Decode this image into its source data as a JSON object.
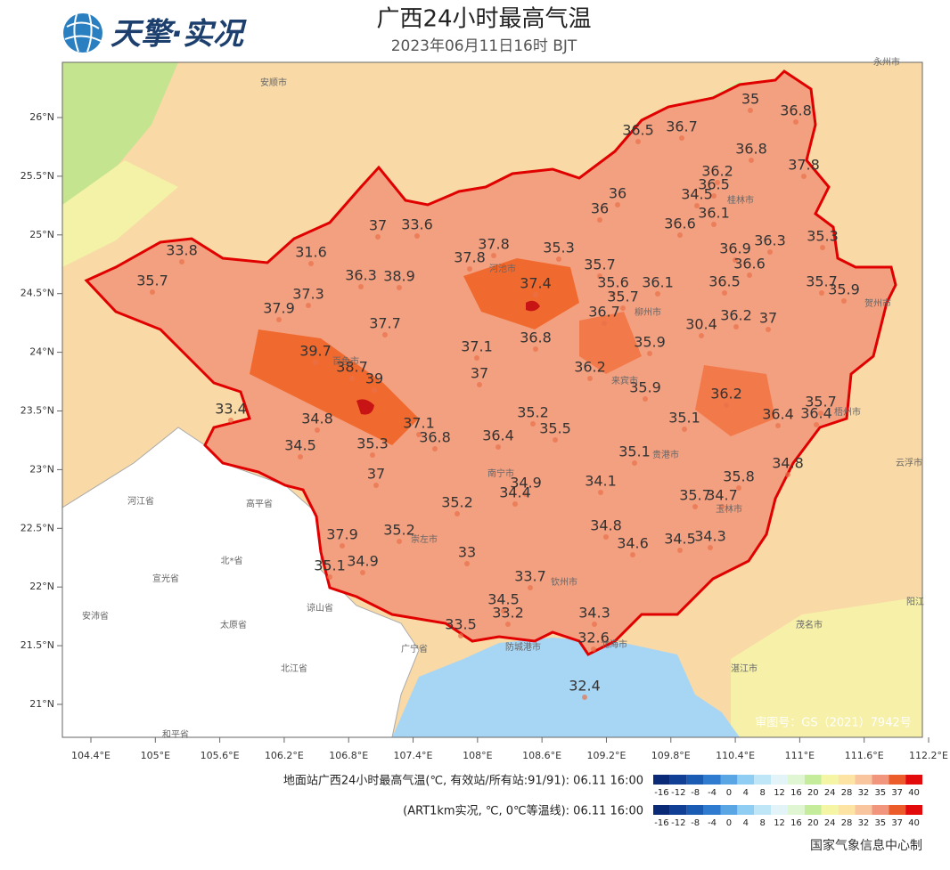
{
  "header": {
    "logo": "天擎·实况",
    "title": "广西24小时最高气温",
    "subtitle": "2023年06月11日16时 BJT"
  },
  "map": {
    "lon_ticks": [
      {
        "value": 104.4,
        "label": "104.4°E"
      },
      {
        "value": 105,
        "label": "105°E"
      },
      {
        "value": 105.6,
        "label": "105.6°E"
      },
      {
        "value": 106.2,
        "label": "106.2°E"
      },
      {
        "value": 106.8,
        "label": "106.8°E"
      },
      {
        "value": 107.4,
        "label": "107.4°E"
      },
      {
        "value": 108,
        "label": "108°E"
      },
      {
        "value": 108.6,
        "label": "108.6°E"
      },
      {
        "value": 109.2,
        "label": "109.2°E"
      },
      {
        "value": 109.8,
        "label": "109.8°E"
      },
      {
        "value": 110.4,
        "label": "110.4°E"
      },
      {
        "value": 111,
        "label": "111°E"
      },
      {
        "value": 111.6,
        "label": "111.6°E"
      },
      {
        "value": 112.2,
        "label": "112.2°E"
      }
    ],
    "lat_ticks": [
      {
        "value": 26,
        "label": "26°N"
      },
      {
        "value": 25.5,
        "label": "25.5°N"
      },
      {
        "value": 25,
        "label": "25°N"
      },
      {
        "value": 24.5,
        "label": "24.5°N"
      },
      {
        "value": 24,
        "label": "24°N"
      },
      {
        "value": 23.5,
        "label": "23.5°N"
      },
      {
        "value": 23,
        "label": "23°N"
      },
      {
        "value": 22.5,
        "label": "22.5°N"
      },
      {
        "value": 22,
        "label": "22°N"
      },
      {
        "value": 21.5,
        "label": "21.5°N"
      },
      {
        "value": 21,
        "label": "21°N"
      }
    ],
    "stations": [
      35,
      36.8,
      36.5,
      36.7,
      36.8,
      37.8,
      36.2,
      36.5,
      34.5,
      36,
      36,
      36.1,
      36.6,
      36.3,
      35.3,
      36.9,
      36.6,
      37,
      33.6,
      31.6,
      37.8,
      37.8,
      35.3,
      35.7,
      33.8,
      35.7,
      36.3,
      38.9,
      37.3,
      37.9,
      37.4,
      35.6,
      36.1,
      35.7,
      36.5,
      35.7,
      35.9,
      36.7,
      36.2,
      37,
      30.4,
      37.7,
      36.8,
      35.9,
      39.7,
      37.1,
      38.7,
      39,
      37,
      36.2,
      35.9,
      36.2,
      35.7,
      33.4,
      34.8,
      35.2,
      36.4,
      36.4,
      35.1,
      37.1,
      35.5,
      36.8,
      36.4,
      34.5,
      35.3,
      35.1,
      34.8,
      37,
      34.1,
      35.8,
      34.9,
      34.4,
      35.7,
      34.7,
      35.2,
      37.9,
      35.2,
      34.8,
      34.6,
      34.5,
      34.3,
      35.1,
      34.9,
      33,
      33.7,
      34.5,
      33.2,
      34.3,
      33.5,
      32.6,
      32.4
    ],
    "cities": [
      "安顺市",
      "河池市",
      "柳州市",
      "桂林市",
      "贺州市",
      "来宾市",
      "百色市",
      "梧州市",
      "贵港市",
      "南宁市",
      "玉林市",
      "崇左市",
      "钦州市",
      "防城港市",
      "北海市",
      "茂名市",
      "湛江市",
      "云浮市",
      "阳江",
      "永州市",
      "河江省",
      "高平省",
      "北*省",
      "宣光省",
      "谅山省",
      "安沛省",
      "太原省",
      "广宁省",
      "北江省",
      "和平省"
    ],
    "approval": "审图号：GS（2021）7942号"
  },
  "legends": [
    {
      "label": "地面站广西24小时最高气温(℃, 有效站/所有站:91/91): 06.11 16:00",
      "ticks": [
        -16,
        -12,
        -8,
        -4,
        0,
        4,
        8,
        12,
        16,
        20,
        24,
        28,
        32,
        35,
        37,
        40
      ],
      "colors": [
        "#0a2a78",
        "#123f96",
        "#1a5cb4",
        "#2e7bd0",
        "#5aa5e4",
        "#8fcdf2",
        "#bfe6f7",
        "#e2f4f7",
        "#e0f5d2",
        "#c5ec9a",
        "#f5f5a6",
        "#fde3a4",
        "#f9c59e",
        "#f1957d",
        "#ec5b2a",
        "#e20a0a"
      ]
    },
    {
      "label": "(ART1km实况, ℃, 0℃等温线): 06.11 16:00",
      "ticks": [
        -16,
        -12,
        -8,
        -4,
        0,
        4,
        8,
        12,
        16,
        20,
        24,
        28,
        32,
        35,
        37,
        40
      ],
      "colors": [
        "#0a2a78",
        "#123f96",
        "#1a5cb4",
        "#2e7bd0",
        "#5aa5e4",
        "#8fcdf2",
        "#bfe6f7",
        "#e2f4f7",
        "#e0f5d2",
        "#c5ec9a",
        "#f5f5a6",
        "#fde3a4",
        "#f9c59e",
        "#f1957d",
        "#ec5b2a",
        "#e20a0a"
      ]
    }
  ],
  "footer": "国家气象信息中心制"
}
